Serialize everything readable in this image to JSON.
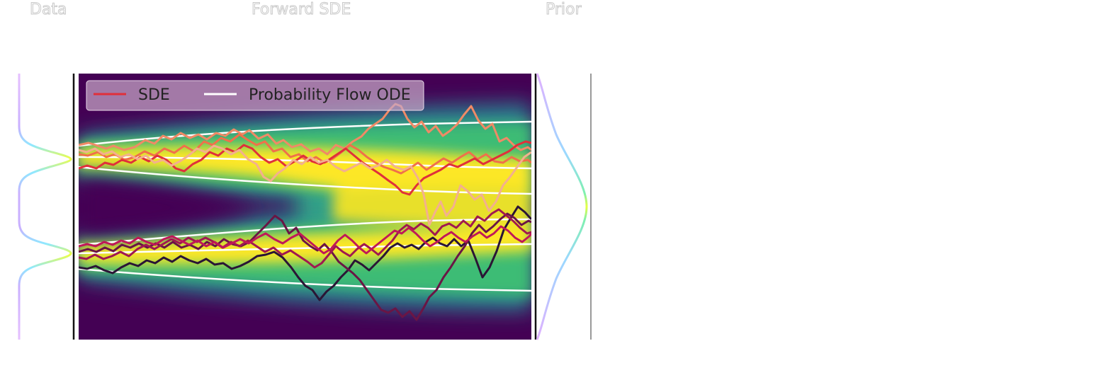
{
  "panels": {
    "left_title": "Data",
    "middle_title": "Forward SDE",
    "right_title": "Prior"
  },
  "legend": {
    "sde_label": "SDE",
    "ode_label": "Probability Flow ODE",
    "sde_color": "#e0303a",
    "ode_color": "#ffffff"
  },
  "colors": {
    "density_colormap": [
      "#440154",
      "#21908d",
      "#5dc962",
      "#fde725"
    ],
    "distribution_colormap": [
      "#e0b0ff",
      "#9bd8ff",
      "#7ff0b0",
      "#e8ff40"
    ],
    "sde_trajectory_colors": [
      "#e0303a",
      "#f0704a",
      "#f3b08e",
      "#f08a66",
      "#2a1535",
      "#6a1545",
      "#a01850",
      "#c01858"
    ]
  }
}
